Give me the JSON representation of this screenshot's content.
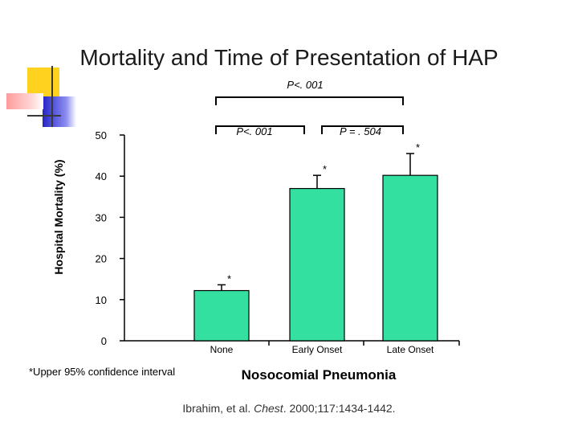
{
  "slide": {
    "title": "Mortality and Time of Presentation of HAP",
    "footnote": "*Upper 95% confidence interval",
    "citation": {
      "author": "Ibrahim, et al. ",
      "journal": "Chest",
      "details": ". 2000;117:1434-1442."
    },
    "colors": {
      "bar": "#33e0a0",
      "deco_yellow": "#ffd21f",
      "deco_blue": "#2525c8",
      "deco_pink": "#ff9b9b",
      "deco_line": "#3a3a3a"
    }
  },
  "chart_data": {
    "type": "bar",
    "title": "",
    "xlabel": "Nosocomial Pneumonia",
    "ylabel": "Hospital Mortality (%)",
    "ylim": [
      0,
      50
    ],
    "yticks": [
      0,
      10,
      20,
      30,
      40,
      50
    ],
    "categories": [
      "None",
      "Early Onset",
      "Late Onset"
    ],
    "values": [
      12.2,
      37,
      40.2
    ],
    "error_upper": [
      13.6,
      40.2,
      45.5
    ],
    "error_marker": "*",
    "comparisons": [
      {
        "label": "P<. 001",
        "from": 0,
        "to": 1,
        "level": 1
      },
      {
        "label": "P = . 504",
        "from": 1,
        "to": 2,
        "level": 1
      },
      {
        "label": "P<. 001",
        "from": 0,
        "to": 2,
        "level": 2
      }
    ]
  }
}
